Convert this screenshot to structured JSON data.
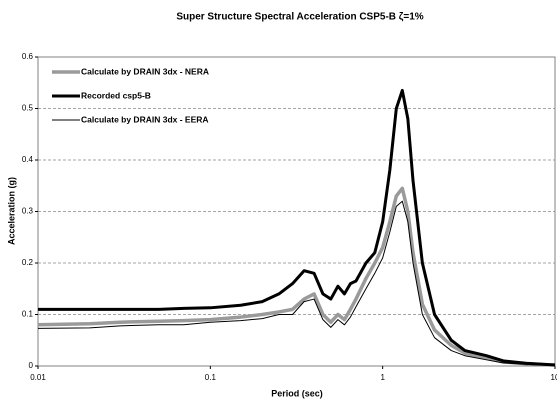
{
  "chart_data": {
    "type": "line",
    "title": "Super Structure Spectral Acceleration CSP5-B ζ=1%",
    "xlabel": "Period (sec)",
    "ylabel": "Acceleration (g)",
    "xscale": "log",
    "grid": true,
    "xlim": [
      0.01,
      10
    ],
    "xticks": [
      0.01,
      0.1,
      1,
      10
    ],
    "ylim": [
      0,
      0.6
    ],
    "yticks": [
      0,
      0.1,
      0.2,
      0.3,
      0.4,
      0.5,
      0.6
    ],
    "x": [
      0.01,
      0.02,
      0.03,
      0.05,
      0.07,
      0.1,
      0.15,
      0.2,
      0.25,
      0.3,
      0.35,
      0.4,
      0.45,
      0.5,
      0.55,
      0.6,
      0.65,
      0.7,
      0.8,
      0.9,
      1.0,
      1.1,
      1.2,
      1.3,
      1.4,
      1.5,
      1.7,
      2,
      2.5,
      3,
      4,
      5,
      7,
      10
    ],
    "series": [
      {
        "name": "Calculate by DRAIN 3dx - NERA",
        "color": "#9a9a9a",
        "line_width": 3.5,
        "values": [
          0.08,
          0.082,
          0.085,
          0.087,
          0.088,
          0.09,
          0.095,
          0.1,
          0.105,
          0.11,
          0.13,
          0.14,
          0.1,
          0.085,
          0.1,
          0.09,
          0.11,
          0.13,
          0.17,
          0.2,
          0.23,
          0.28,
          0.33,
          0.345,
          0.3,
          0.22,
          0.12,
          0.07,
          0.04,
          0.025,
          0.015,
          0.008,
          0.004,
          0.002
        ]
      },
      {
        "name": "Recorded csp5-B",
        "color": "#000000",
        "line_width": 3,
        "values": [
          0.11,
          0.11,
          0.11,
          0.11,
          0.112,
          0.113,
          0.118,
          0.125,
          0.14,
          0.16,
          0.185,
          0.18,
          0.14,
          0.13,
          0.155,
          0.14,
          0.16,
          0.165,
          0.2,
          0.22,
          0.28,
          0.38,
          0.5,
          0.535,
          0.48,
          0.36,
          0.2,
          0.1,
          0.05,
          0.03,
          0.02,
          0.01,
          0.005,
          0.002
        ]
      },
      {
        "name": "Calculate by DRAIN 3dx - EERA",
        "color": "#000000",
        "line_width": 1,
        "values": [
          0.073,
          0.074,
          0.078,
          0.08,
          0.08,
          0.085,
          0.088,
          0.092,
          0.1,
          0.1,
          0.125,
          0.13,
          0.09,
          0.075,
          0.09,
          0.08,
          0.095,
          0.115,
          0.15,
          0.18,
          0.21,
          0.26,
          0.31,
          0.32,
          0.28,
          0.2,
          0.1,
          0.055,
          0.03,
          0.02,
          0.012,
          0.006,
          0.003,
          0.001
        ]
      }
    ]
  }
}
